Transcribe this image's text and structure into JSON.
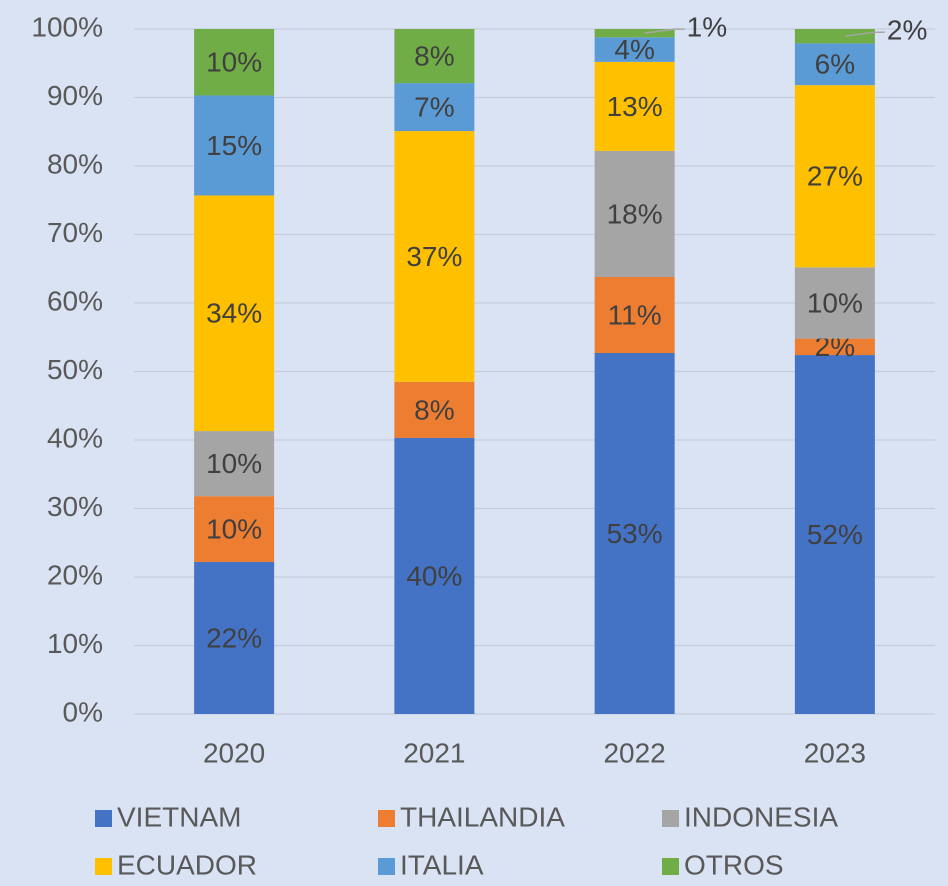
{
  "chart_data": {
    "type": "stacked_bar",
    "categories": [
      "2020",
      "2021",
      "2022",
      "2023"
    ],
    "series": [
      {
        "name": "VIETNAM",
        "color": "#4472c4",
        "values": [
          22.2,
          40.3,
          52.7,
          52.4
        ],
        "value_labels": [
          "22%",
          "40%",
          "53%",
          "52%"
        ]
      },
      {
        "name": "THAILANDIA",
        "color": "#ed7d31",
        "values": [
          9.6,
          8.2,
          11.1,
          2.4
        ],
        "value_labels": [
          "10%",
          "8%",
          "11%",
          "2%"
        ]
      },
      {
        "name": "INDONESIA",
        "color": "#a5a5a5",
        "values": [
          9.5,
          0,
          18.4,
          10.4
        ],
        "value_labels": [
          "10%",
          null,
          "18%",
          "10%"
        ]
      },
      {
        "name": "ECUADOR",
        "color": "#ffc000",
        "values": [
          34.4,
          36.6,
          13.0,
          26.6
        ],
        "value_labels": [
          "34%",
          "37%",
          "13%",
          "27%"
        ]
      },
      {
        "name": "ITALIA",
        "color": "#5b9bd5",
        "values": [
          14.6,
          7.0,
          3.6,
          6.1
        ],
        "value_labels": [
          "15%",
          "7%",
          "4%",
          "6%"
        ]
      },
      {
        "name": "OTROS",
        "color": "#70ad47",
        "values": [
          9.7,
          7.9,
          1.2,
          2.1
        ],
        "value_labels": [
          "10%",
          "8%",
          "1%",
          "2%"
        ]
      }
    ],
    "ylim": [
      0,
      100
    ],
    "yticks": [
      {
        "value": 0,
        "label": "0%"
      },
      {
        "value": 10,
        "label": "10%"
      },
      {
        "value": 20,
        "label": "20%"
      },
      {
        "value": 30,
        "label": "30%"
      },
      {
        "value": 40,
        "label": "40%"
      },
      {
        "value": 50,
        "label": "50%"
      },
      {
        "value": 60,
        "label": "60%"
      },
      {
        "value": 70,
        "label": "70%"
      },
      {
        "value": 80,
        "label": "80%"
      },
      {
        "value": 90,
        "label": "90%"
      },
      {
        "value": 100,
        "label": "100%"
      }
    ],
    "grid": true,
    "legend": "bottom"
  }
}
